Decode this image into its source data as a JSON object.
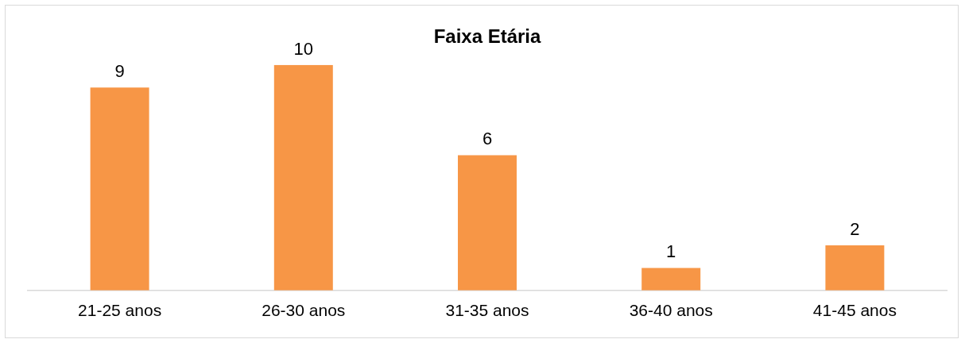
{
  "chart_data": {
    "type": "bar",
    "title": "Faixa Etária",
    "categories": [
      "21-25 anos",
      "26-30 anos",
      "31-35 anos",
      "36-40 anos",
      "41-45 anos"
    ],
    "values": [
      9,
      10,
      6,
      1,
      2
    ],
    "color": "#f79646",
    "grid": false,
    "legend": false,
    "tick_labels": "x",
    "data_labels": true
  }
}
